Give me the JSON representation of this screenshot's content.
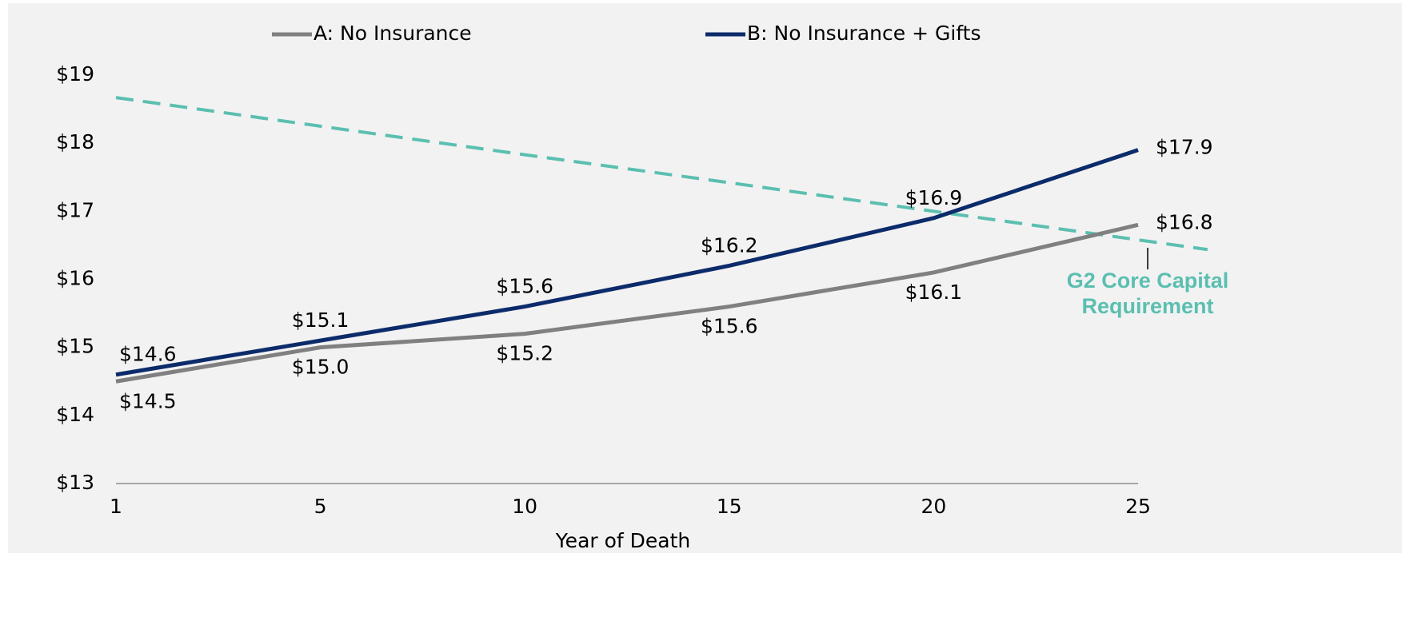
{
  "chart_data": {
    "type": "line",
    "x_label": "Year of Death",
    "categories": [
      "1",
      "5",
      "10",
      "15",
      "20",
      "25"
    ],
    "series": [
      {
        "name": "A: No Insurance",
        "color": "#808080",
        "values": [
          14.5,
          15.0,
          15.2,
          15.6,
          16.1,
          16.8
        ],
        "value_labels": [
          "$14.5",
          "$15.0",
          "$15.2",
          "$15.6",
          "$16.1",
          "$16.8"
        ]
      },
      {
        "name": "B: No Insurance + Gifts",
        "color": "#0c2b6b",
        "values": [
          14.6,
          15.1,
          15.6,
          16.2,
          16.9,
          17.9
        ],
        "value_labels": [
          "$14.6",
          "$15.1",
          "$15.6",
          "$16.2",
          "$16.9",
          "$17.9"
        ]
      }
    ],
    "reference_line": {
      "color": "#5bbfb0",
      "dashed": true,
      "values": [
        18.67,
        18.25,
        17.83,
        17.42,
        17.0,
        16.58
      ]
    },
    "annotation": [
      "G2 Core Capital",
      "Requirement"
    ],
    "ylim": [
      13,
      19
    ],
    "yticks": [
      {
        "value": 13,
        "label": "$13"
      },
      {
        "value": 14,
        "label": "$14"
      },
      {
        "value": 15,
        "label": "$15"
      },
      {
        "value": 16,
        "label": "$16"
      },
      {
        "value": 17,
        "label": "$17"
      },
      {
        "value": 18,
        "label": "$18"
      },
      {
        "value": 19,
        "label": "$19"
      }
    ],
    "legend": "top"
  }
}
